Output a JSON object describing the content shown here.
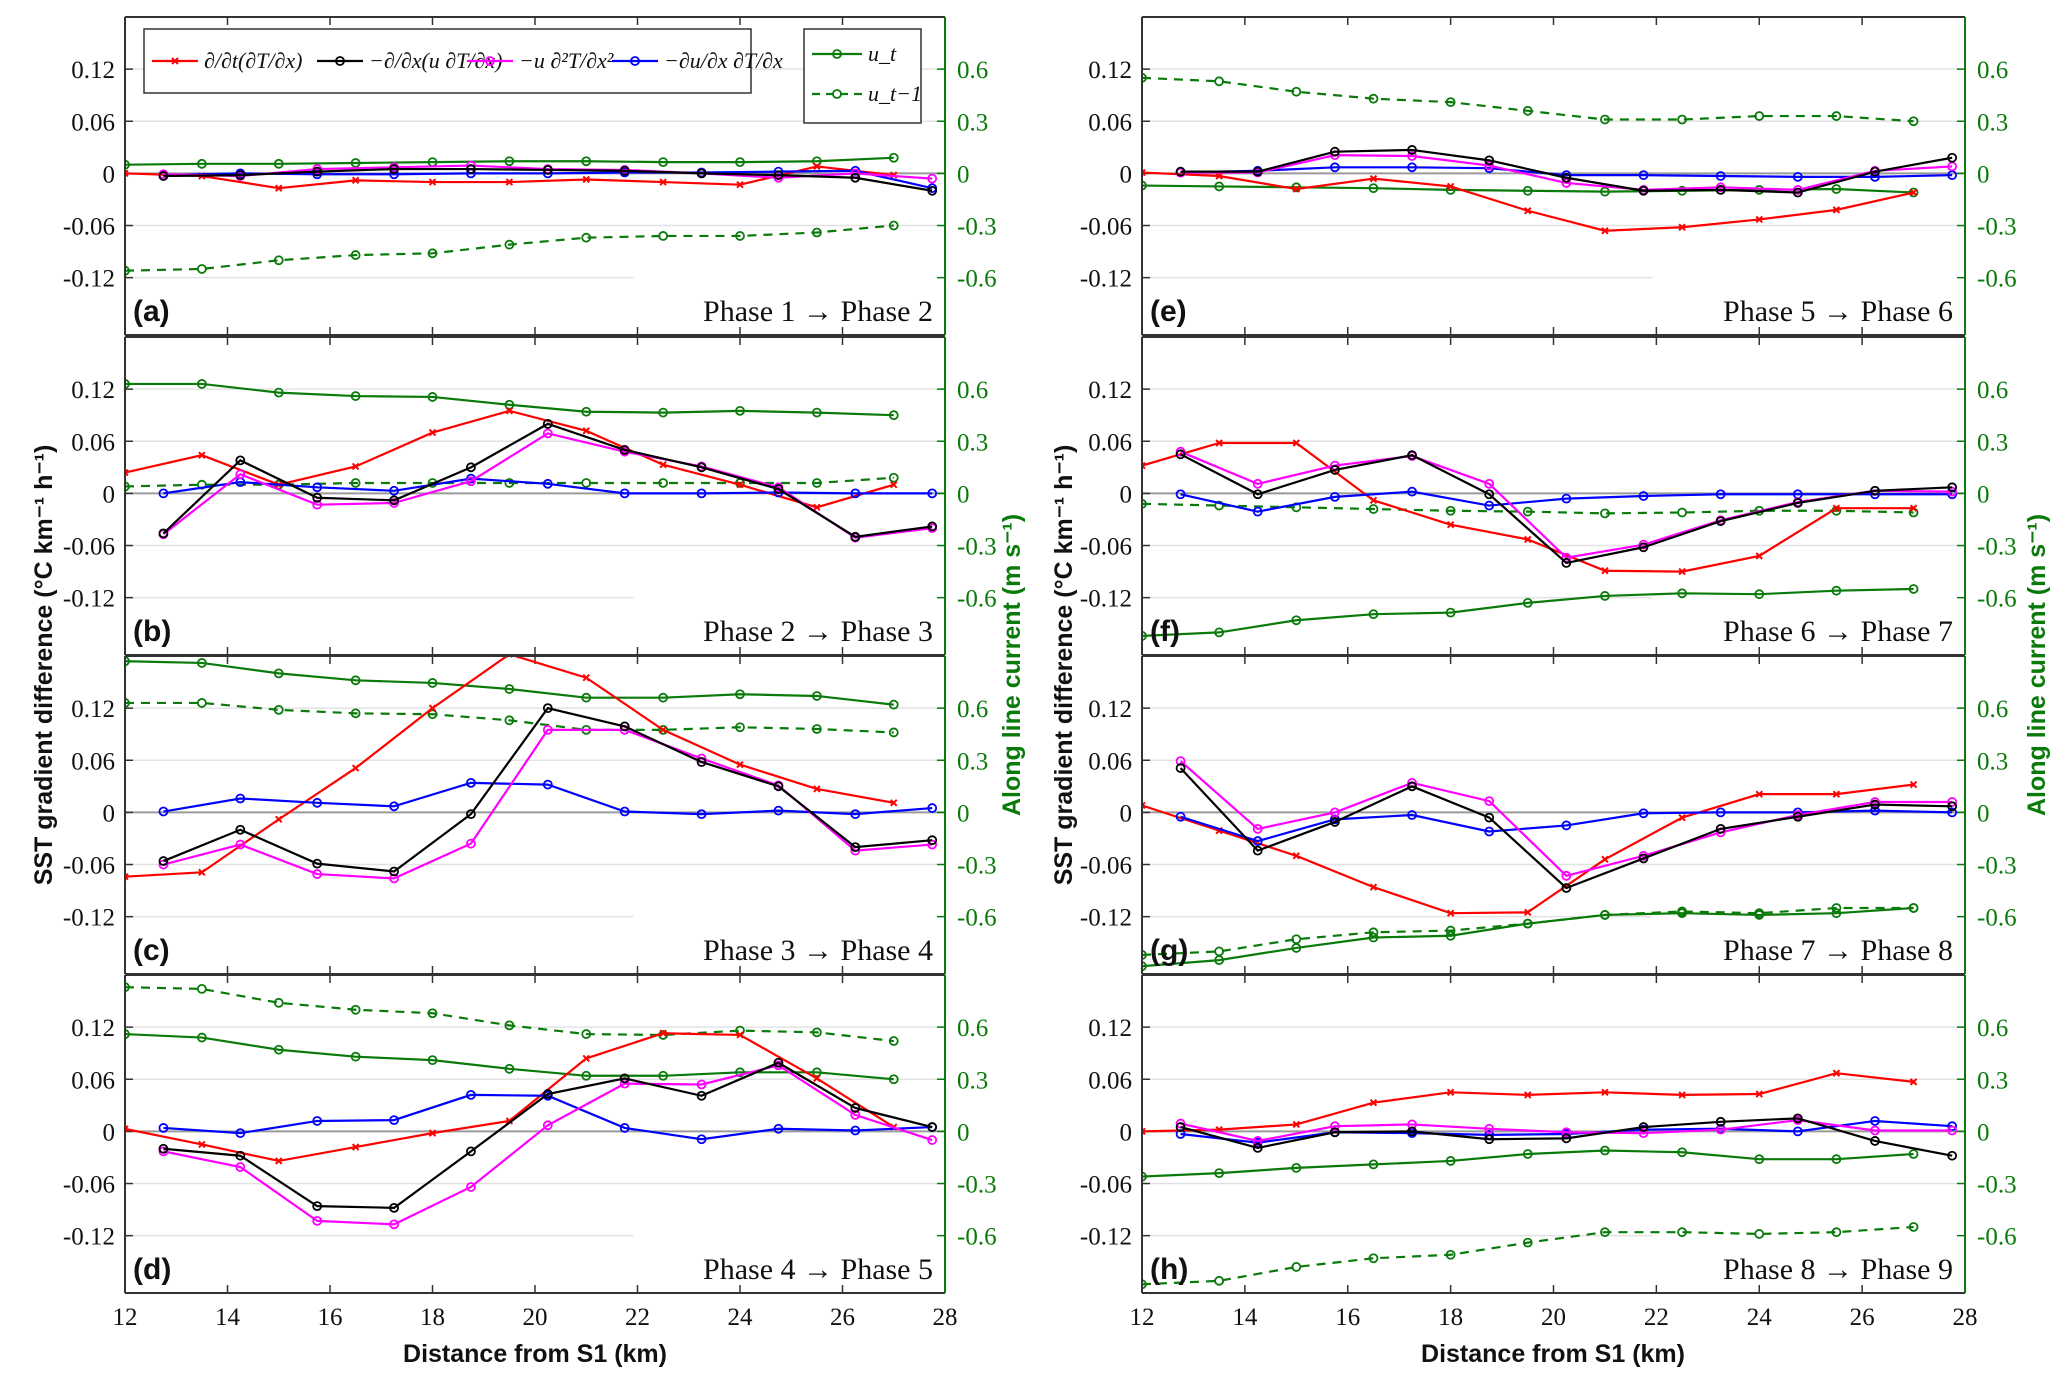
{
  "chart_data": {
    "type": "line",
    "figure": "8-panel SST gradient budget along transect",
    "xlabel": "Distance from S1 (km)",
    "ylabel_left": "SST gradient difference (°C km⁻¹ h⁻¹)",
    "ylabel_right": "Along line current (m s⁻¹)",
    "xlim": [
      12,
      28
    ],
    "x_ticks": [
      "12",
      "14",
      "16",
      "18",
      "20",
      "22",
      "24",
      "26",
      "28"
    ],
    "ylim_left": [
      -0.186,
      0.18
    ],
    "ylim_right": [
      -0.93,
      0.9
    ],
    "y_ticks_left": [
      "0.12",
      "0.06",
      "0",
      "-0.06",
      "-0.12"
    ],
    "y_ticks_right": [
      "0.6",
      "0.3",
      "0",
      "-0.3",
      "-0.6"
    ],
    "grid": true,
    "legend_placement": "top (panel a)",
    "legend": [
      {
        "key": "dTdt",
        "label": "∂/∂t(∂T/∂x)",
        "color": "#ff0000",
        "marker": "x"
      },
      {
        "key": "adv",
        "label": "−∂/∂x(u ∂T/∂x)",
        "color": "#000000",
        "marker": "o"
      },
      {
        "key": "udiff",
        "label": "−u ∂²T/∂x²",
        "color": "#ff00ff",
        "marker": "o"
      },
      {
        "key": "shear",
        "label": "−∂u/∂x ∂T/∂x",
        "color": "#0000ff",
        "marker": "o"
      },
      {
        "key": "ut",
        "label": "u_t",
        "color": "#0a7a0a",
        "marker": "o",
        "dash": "solid"
      },
      {
        "key": "ut1",
        "label": "u_t−1",
        "color": "#0a7a0a",
        "marker": "o",
        "dash": "dashed"
      }
    ],
    "x_grid_a": [
      12,
      13.5,
      15,
      16.5,
      18,
      19.5,
      21,
      22.5,
      24,
      25.5,
      27
    ],
    "x_grid_b": [
      12.75,
      14.25,
      15.75,
      17.25,
      18.75,
      20.25,
      21.75,
      23.25,
      24.75,
      26.25,
      27.75
    ],
    "panels": [
      {
        "letter": "(a)",
        "phase_from": "Phase 1",
        "phase_to": "Phase 2",
        "dTdt": [
          0,
          -0.003,
          -0.017,
          -0.008,
          -0.01,
          -0.01,
          -0.007,
          -0.01,
          -0.013,
          0.008,
          -0.002
        ],
        "adv": [
          -0.003,
          -0.002,
          0.002,
          0.005,
          0.005,
          0.004,
          0.003,
          0.0,
          -0.002,
          -0.005,
          -0.02
        ],
        "udiff": [
          -0.001,
          -0.003,
          0.005,
          0.007,
          0.009,
          0.005,
          0.004,
          0.0,
          -0.005,
          0.0,
          -0.006
        ],
        "shear": [
          -0.002,
          0.0,
          -0.001,
          -0.001,
          0.0,
          0.0,
          0.001,
          0.001,
          0.002,
          0.003,
          -0.017
        ],
        "ut": [
          0.05,
          0.055,
          0.055,
          0.06,
          0.065,
          0.07,
          0.07,
          0.065,
          0.065,
          0.07,
          0.09
        ],
        "ut1": [
          -0.56,
          -0.55,
          -0.5,
          -0.47,
          -0.46,
          -0.41,
          -0.37,
          -0.36,
          -0.36,
          -0.34,
          -0.3
        ]
      },
      {
        "letter": "(b)",
        "phase_from": "Phase 2",
        "phase_to": "Phase 3",
        "dTdt": [
          0.024,
          0.044,
          0.01,
          0.031,
          0.07,
          0.095,
          0.072,
          0.033,
          0.01,
          -0.016,
          0.01
        ],
        "adv": [
          -0.046,
          0.038,
          -0.005,
          -0.008,
          0.03,
          0.08,
          0.05,
          0.03,
          0.005,
          -0.05,
          -0.038
        ],
        "udiff": [
          -0.047,
          0.022,
          -0.013,
          -0.011,
          0.014,
          0.069,
          0.048,
          0.031,
          0.007,
          -0.051,
          -0.04
        ],
        "shear": [
          0.0,
          0.013,
          0.007,
          0.003,
          0.017,
          0.011,
          0.0,
          0.0,
          0.001,
          0.0,
          0.0
        ],
        "ut": [
          0.63,
          0.63,
          0.58,
          0.56,
          0.555,
          0.51,
          0.47,
          0.465,
          0.475,
          0.465,
          0.45
        ],
        "ut1": [
          0.04,
          0.05,
          0.05,
          0.06,
          0.06,
          0.06,
          0.06,
          0.06,
          0.06,
          0.06,
          0.09
        ]
      },
      {
        "letter": "(c)",
        "phase_from": "Phase 3",
        "phase_to": "Phase 4",
        "dTdt": [
          -0.074,
          -0.069,
          -0.008,
          0.051,
          0.12,
          0.182,
          0.155,
          0.095,
          0.055,
          0.027,
          0.011
        ],
        "adv": [
          -0.056,
          -0.02,
          -0.059,
          -0.068,
          -0.002,
          0.12,
          0.099,
          0.058,
          0.03,
          -0.04,
          -0.032
        ],
        "udiff": [
          -0.06,
          -0.037,
          -0.071,
          -0.076,
          -0.036,
          0.095,
          0.095,
          0.062,
          0.031,
          -0.044,
          -0.037
        ],
        "shear": [
          0.001,
          0.016,
          0.011,
          0.007,
          0.034,
          0.032,
          0.001,
          -0.002,
          0.002,
          -0.002,
          0.005
        ],
        "ut": [
          0.87,
          0.86,
          0.8,
          0.76,
          0.745,
          0.71,
          0.66,
          0.66,
          0.68,
          0.67,
          0.62
        ],
        "ut1": [
          0.63,
          0.63,
          0.59,
          0.57,
          0.565,
          0.53,
          0.475,
          0.475,
          0.49,
          0.48,
          0.46
        ]
      },
      {
        "letter": "(d)",
        "phase_from": "Phase 4",
        "phase_to": "Phase 5",
        "dTdt": [
          0.003,
          -0.015,
          -0.034,
          -0.018,
          -0.002,
          0.012,
          0.084,
          0.113,
          0.111,
          0.061,
          0.005
        ],
        "adv": [
          -0.02,
          -0.028,
          -0.086,
          -0.088,
          -0.023,
          0.043,
          0.061,
          0.041,
          0.079,
          0.027,
          0.005
        ],
        "udiff": [
          -0.023,
          -0.041,
          -0.103,
          -0.107,
          -0.064,
          0.007,
          0.055,
          0.054,
          0.076,
          0.019,
          -0.01
        ],
        "shear": [
          0.004,
          -0.002,
          0.012,
          0.013,
          0.042,
          0.041,
          0.004,
          -0.009,
          0.003,
          0.001,
          0.005
        ],
        "ut": [
          0.56,
          0.54,
          0.47,
          0.43,
          0.41,
          0.36,
          0.32,
          0.32,
          0.34,
          0.34,
          0.3
        ],
        "ut1": [
          0.83,
          0.82,
          0.74,
          0.7,
          0.68,
          0.61,
          0.56,
          0.555,
          0.58,
          0.57,
          0.52
        ]
      },
      {
        "letter": "(e)",
        "phase_from": "Phase 5",
        "phase_to": "Phase 6",
        "dTdt": [
          0.001,
          -0.003,
          -0.018,
          -0.006,
          -0.015,
          -0.043,
          -0.066,
          -0.062,
          -0.053,
          -0.042,
          -0.022
        ],
        "adv": [
          0.002,
          0.002,
          0.025,
          0.027,
          0.015,
          -0.005,
          -0.02,
          -0.019,
          -0.022,
          0.002,
          0.018
        ],
        "udiff": [
          0.001,
          0.001,
          0.021,
          0.02,
          0.009,
          -0.011,
          -0.019,
          -0.016,
          -0.019,
          0.003,
          0.008
        ],
        "shear": [
          0.001,
          0.003,
          0.007,
          0.007,
          0.006,
          -0.002,
          -0.002,
          -0.003,
          -0.004,
          -0.004,
          -0.002
        ],
        "ut": [
          -0.07,
          -0.075,
          -0.08,
          -0.085,
          -0.095,
          -0.1,
          -0.105,
          -0.1,
          -0.095,
          -0.09,
          -0.11
        ],
        "ut1": [
          0.55,
          0.53,
          0.47,
          0.43,
          0.41,
          0.36,
          0.31,
          0.31,
          0.33,
          0.33,
          0.3
        ]
      },
      {
        "letter": "(f)",
        "phase_from": "Phase 6",
        "phase_to": "Phase 7",
        "dTdt": [
          0.032,
          0.058,
          0.058,
          -0.008,
          -0.036,
          -0.053,
          -0.089,
          -0.09,
          -0.072,
          -0.017,
          -0.017
        ],
        "adv": [
          0.045,
          -0.001,
          0.027,
          0.044,
          -0.001,
          -0.08,
          -0.062,
          -0.032,
          -0.011,
          0.003,
          0.007
        ],
        "udiff": [
          0.048,
          0.011,
          0.032,
          0.043,
          0.011,
          -0.074,
          -0.059,
          -0.031,
          -0.01,
          0.003,
          0.002
        ],
        "shear": [
          -0.001,
          -0.021,
          -0.004,
          0.002,
          -0.014,
          -0.006,
          -0.003,
          -0.001,
          -0.001,
          -0.001,
          -0.001
        ],
        "ut": [
          -0.82,
          -0.8,
          -0.73,
          -0.695,
          -0.686,
          -0.63,
          -0.59,
          -0.575,
          -0.58,
          -0.56,
          -0.55
        ],
        "ut1": [
          -0.06,
          -0.07,
          -0.08,
          -0.09,
          -0.1,
          -0.105,
          -0.115,
          -0.11,
          -0.1,
          -0.1,
          -0.11
        ]
      },
      {
        "letter": "(g)",
        "phase_from": "Phase 7",
        "phase_to": "Phase 8",
        "dTdt": [
          0.008,
          -0.021,
          -0.05,
          -0.086,
          -0.116,
          -0.115,
          -0.054,
          -0.006,
          0.021,
          0.021,
          0.032
        ],
        "adv": [
          0.051,
          -0.044,
          -0.011,
          0.03,
          -0.006,
          -0.087,
          -0.053,
          -0.019,
          -0.005,
          0.009,
          0.007
        ],
        "udiff": [
          0.059,
          -0.019,
          0.0,
          0.034,
          0.013,
          -0.073,
          -0.05,
          -0.023,
          -0.003,
          0.012,
          0.012
        ],
        "shear": [
          -0.005,
          -0.033,
          -0.008,
          -0.003,
          -0.022,
          -0.015,
          -0.001,
          0.0,
          0.0,
          0.002,
          0.0
        ],
        "ut": [
          -0.885,
          -0.85,
          -0.78,
          -0.72,
          -0.71,
          -0.64,
          -0.59,
          -0.58,
          -0.59,
          -0.58,
          -0.55
        ],
        "ut1": [
          -0.82,
          -0.8,
          -0.73,
          -0.69,
          -0.68,
          -0.64,
          -0.59,
          -0.57,
          -0.58,
          -0.55,
          -0.55
        ]
      },
      {
        "letter": "(h)",
        "phase_from": "Phase 8",
        "phase_to": "Phase 9",
        "dTdt": [
          0.0,
          0.002,
          0.008,
          0.033,
          0.045,
          0.042,
          0.045,
          0.042,
          0.043,
          0.067,
          0.057
        ],
        "adv": [
          0.005,
          -0.019,
          -0.001,
          0.0,
          -0.009,
          -0.008,
          0.005,
          0.011,
          0.015,
          -0.011,
          -0.028
        ],
        "udiff": [
          0.009,
          -0.011,
          0.006,
          0.008,
          0.003,
          -0.001,
          -0.002,
          0.002,
          0.013,
          0.001,
          0.001
        ],
        "shear": [
          -0.003,
          -0.013,
          -0.001,
          -0.002,
          -0.004,
          -0.003,
          0.002,
          0.003,
          0.0,
          0.012,
          0.006
        ],
        "ut": [
          -0.26,
          -0.24,
          -0.21,
          -0.19,
          -0.17,
          -0.13,
          -0.11,
          -0.12,
          -0.16,
          -0.16,
          -0.13
        ],
        "ut1": [
          -0.88,
          -0.86,
          -0.78,
          -0.73,
          -0.71,
          -0.64,
          -0.58,
          -0.58,
          -0.59,
          -0.58,
          -0.55
        ]
      }
    ]
  },
  "arrow": "→"
}
